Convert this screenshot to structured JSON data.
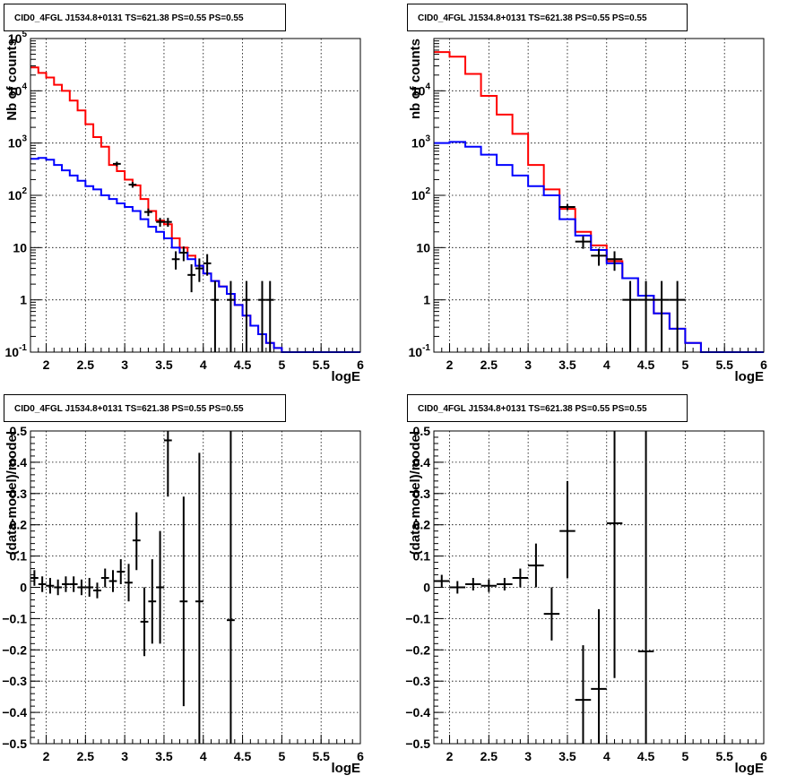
{
  "chart_data": [
    {
      "type": "line",
      "title": "CID0_4FGL J1534.8+0131 TS=621.38 PS=0.55 PS=0.55",
      "xlabel": "logE",
      "ylabel": "Nb of counts",
      "xlim": [
        1.8,
        6.0
      ],
      "ylim": [
        0.1,
        100000
      ],
      "yscale": "log",
      "grid": true,
      "xticks": [
        "2",
        "2.5",
        "3",
        "3.5",
        "4",
        "4.5",
        "5",
        "5.5",
        "6"
      ],
      "yticks": [
        "10",
        "1",
        "10"
      ],
      "yticks_log": [
        {
          "value": 0.1,
          "base": "10",
          "exp": "-1"
        },
        {
          "value": 1,
          "base": "1",
          "exp": ""
        },
        {
          "value": 10,
          "base": "10",
          "exp": ""
        },
        {
          "value": 100,
          "base": "10",
          "exp": "2"
        },
        {
          "value": 1000,
          "base": "10",
          "exp": "3"
        },
        {
          "value": 10000,
          "base": "10",
          "exp": "4"
        },
        {
          "value": 100000,
          "base": "10",
          "exp": "5"
        }
      ],
      "series": [
        {
          "color": "#ff0000",
          "style": "step",
          "edges": [
            1.8,
            1.9,
            2.0,
            2.1,
            2.2,
            2.3,
            2.4,
            2.5,
            2.6,
            2.7,
            2.8,
            2.9,
            3.0,
            3.1,
            3.2,
            3.3,
            3.4,
            3.5,
            3.6,
            3.7,
            3.8,
            3.9,
            4.0,
            4.1,
            4.2,
            4.3,
            4.4,
            4.5,
            4.6,
            4.7,
            4.8,
            4.9,
            5.0,
            5.1,
            5.2,
            5.3,
            5.4,
            5.5,
            5.6,
            5.7,
            5.8,
            5.9,
            6.0
          ],
          "values": [
            28000,
            22000,
            18000,
            13000,
            10000,
            6500,
            4200,
            2300,
            1300,
            850,
            380,
            290,
            200,
            155,
            85,
            50,
            33,
            28,
            15,
            10,
            7,
            4.5,
            3.2,
            2.3,
            1.8,
            1.3,
            0.8,
            0.5,
            0.32,
            0.22,
            0.15,
            0.12,
            0.1,
            0.1,
            0.1,
            0.1,
            0.1,
            0.1,
            0.1,
            0.1,
            0.1,
            0.1
          ]
        },
        {
          "color": "#0000ff",
          "style": "step",
          "edges": [
            1.8,
            1.9,
            2.0,
            2.1,
            2.2,
            2.3,
            2.4,
            2.5,
            2.6,
            2.7,
            2.8,
            2.9,
            3.0,
            3.1,
            3.2,
            3.3,
            3.4,
            3.5,
            3.6,
            3.7,
            3.8,
            3.9,
            4.0,
            4.1,
            4.2,
            4.3,
            4.4,
            4.5,
            4.6,
            4.7,
            4.8,
            4.9,
            5.0,
            5.1,
            5.2,
            5.3,
            5.4,
            5.5,
            5.6,
            5.7,
            5.8,
            5.9,
            6.0
          ],
          "values": [
            500,
            520,
            480,
            380,
            300,
            240,
            190,
            150,
            130,
            100,
            85,
            70,
            60,
            50,
            35,
            25,
            20,
            15,
            10,
            8,
            6,
            4.5,
            3.2,
            2.3,
            1.8,
            1.3,
            0.8,
            0.5,
            0.32,
            0.22,
            0.15,
            0.12,
            0.1,
            0.1,
            0.1,
            0.1,
            0.1,
            0.1,
            0.1,
            0.1,
            0.1,
            0.1
          ]
        }
      ],
      "points": [
        {
          "x": 2.9,
          "y": 400,
          "xerr": 0.05,
          "ylo": 360,
          "yhi": 440
        },
        {
          "x": 3.1,
          "y": 160,
          "xerr": 0.05,
          "ylo": 140,
          "yhi": 180
        },
        {
          "x": 3.3,
          "y": 48,
          "xerr": 0.05,
          "ylo": 40,
          "yhi": 56
        },
        {
          "x": 3.45,
          "y": 31,
          "xerr": 0.05,
          "ylo": 25,
          "yhi": 37
        },
        {
          "x": 3.55,
          "y": 31,
          "xerr": 0.05,
          "ylo": 25,
          "yhi": 37
        },
        {
          "x": 3.65,
          "y": 6,
          "xerr": 0.05,
          "ylo": 3.8,
          "yhi": 8.5
        },
        {
          "x": 3.75,
          "y": 8,
          "xerr": 0.05,
          "ylo": 5.5,
          "yhi": 10.5
        },
        {
          "x": 3.85,
          "y": 3,
          "xerr": 0.05,
          "ylo": 1.4,
          "yhi": 4.8
        },
        {
          "x": 3.95,
          "y": 4,
          "xerr": 0.05,
          "ylo": 2.2,
          "yhi": 6.2
        },
        {
          "x": 4.05,
          "y": 5,
          "xerr": 0.05,
          "ylo": 2.9,
          "yhi": 7.5
        },
        {
          "x": 4.15,
          "y": 1,
          "xerr": 0.05,
          "ylo": 0.1,
          "yhi": 2.3
        },
        {
          "x": 4.35,
          "y": 1,
          "xerr": 0.05,
          "ylo": 0.1,
          "yhi": 2.3
        },
        {
          "x": 4.55,
          "y": 1,
          "xerr": 0.05,
          "ylo": 0.1,
          "yhi": 2.3
        },
        {
          "x": 4.75,
          "y": 1,
          "xerr": 0.05,
          "ylo": 0.1,
          "yhi": 2.3
        },
        {
          "x": 4.85,
          "y": 1,
          "xerr": 0.05,
          "ylo": 0.1,
          "yhi": 2.3
        }
      ]
    },
    {
      "type": "line",
      "title": "CID0_4FGL J1534.8+0131 TS=621.38 PS=0.55 PS=0.55",
      "xlabel": "logE",
      "ylabel": "nb of counts",
      "xlim": [
        1.8,
        6.0
      ],
      "ylim": [
        0.1,
        100000
      ],
      "yscale": "log",
      "grid": true,
      "xticks": [
        "2",
        "2.5",
        "3",
        "3.5",
        "4",
        "4.5",
        "5",
        "5.5",
        "6"
      ],
      "yticks_log": [
        {
          "value": 0.1,
          "base": "10",
          "exp": "-1"
        },
        {
          "value": 1,
          "base": "1",
          "exp": ""
        },
        {
          "value": 10,
          "base": "10",
          "exp": ""
        },
        {
          "value": 100,
          "base": "10",
          "exp": "2"
        },
        {
          "value": 1000,
          "base": "10",
          "exp": "3"
        },
        {
          "value": 10000,
          "base": "10",
          "exp": "4"
        }
      ],
      "series": [
        {
          "color": "#ff0000",
          "style": "step",
          "edges": [
            1.8,
            2.0,
            2.2,
            2.4,
            2.6,
            2.8,
            3.0,
            3.2,
            3.4,
            3.6,
            3.8,
            4.0,
            4.2,
            4.4,
            4.6,
            4.8,
            5.0,
            5.2,
            5.4,
            5.6,
            5.8,
            6.0
          ],
          "values": [
            55000,
            45000,
            21000,
            8000,
            3500,
            1500,
            380,
            130,
            55,
            20,
            11,
            5.5,
            2.6,
            1.2,
            0.55,
            0.28,
            0.15,
            0.1,
            0.1,
            0.1,
            0.1
          ]
        },
        {
          "color": "#0000ff",
          "style": "step",
          "edges": [
            1.8,
            2.0,
            2.2,
            2.4,
            2.6,
            2.8,
            3.0,
            3.2,
            3.4,
            3.6,
            3.8,
            4.0,
            4.2,
            4.4,
            4.6,
            4.8,
            5.0,
            5.2,
            5.4,
            5.6,
            5.8,
            6.0
          ],
          "values": [
            1000,
            1050,
            850,
            600,
            380,
            240,
            150,
            100,
            35,
            17,
            9,
            5,
            2.6,
            1.2,
            0.55,
            0.28,
            0.15,
            0.1,
            0.1,
            0.1,
            0.1
          ]
        }
      ],
      "points": [
        {
          "x": 3.5,
          "y": 60,
          "xerr": 0.1,
          "ylo": 52,
          "yhi": 68
        },
        {
          "x": 3.7,
          "y": 13,
          "xerr": 0.1,
          "ylo": 9.5,
          "yhi": 16.5
        },
        {
          "x": 3.9,
          "y": 7,
          "xerr": 0.1,
          "ylo": 4.5,
          "yhi": 9.5
        },
        {
          "x": 4.1,
          "y": 6,
          "xerr": 0.1,
          "ylo": 3.6,
          "yhi": 8.5
        },
        {
          "x": 4.3,
          "y": 1,
          "xerr": 0.1,
          "ylo": 0.1,
          "yhi": 2.3
        },
        {
          "x": 4.5,
          "y": 1,
          "xerr": 0.1,
          "ylo": 0.1,
          "yhi": 2.3
        },
        {
          "x": 4.7,
          "y": 1,
          "xerr": 0.1,
          "ylo": 0.1,
          "yhi": 2.3
        },
        {
          "x": 4.9,
          "y": 1,
          "xerr": 0.1,
          "ylo": 0.1,
          "yhi": 2.3
        }
      ]
    },
    {
      "type": "scatter",
      "title": "CID0_4FGL J1534.8+0131 TS=621.38 PS=0.55 PS=0.55",
      "xlabel": "logE",
      "ylabel": "(data-model)/model",
      "xlim": [
        1.8,
        6.0
      ],
      "ylim": [
        -0.5,
        0.5
      ],
      "grid": true,
      "xticks": [
        "2",
        "2.5",
        "3",
        "3.5",
        "4",
        "4.5",
        "5",
        "5.5",
        "6"
      ],
      "yticks": [
        "−0.5",
        "−0.4",
        "−0.3",
        "−0.2",
        "−0.1",
        "0",
        "0.1",
        "0.2",
        "0.3",
        "0.4",
        "0.5"
      ],
      "points": [
        {
          "x": 1.85,
          "y": 0.03,
          "xerr": 0.05,
          "ylo": 0.005,
          "yhi": 0.055
        },
        {
          "x": 1.95,
          "y": 0.01,
          "xerr": 0.05,
          "ylo": -0.015,
          "yhi": 0.035
        },
        {
          "x": 2.05,
          "y": 0.005,
          "xerr": 0.05,
          "ylo": -0.02,
          "yhi": 0.03
        },
        {
          "x": 2.15,
          "y": 0.0,
          "xerr": 0.05,
          "ylo": -0.025,
          "yhi": 0.025
        },
        {
          "x": 2.25,
          "y": 0.01,
          "xerr": 0.05,
          "ylo": -0.015,
          "yhi": 0.035
        },
        {
          "x": 2.35,
          "y": 0.01,
          "xerr": 0.05,
          "ylo": -0.015,
          "yhi": 0.035
        },
        {
          "x": 2.45,
          "y": 0.0,
          "xerr": 0.05,
          "ylo": -0.025,
          "yhi": 0.025
        },
        {
          "x": 2.55,
          "y": 0.0,
          "xerr": 0.05,
          "ylo": -0.03,
          "yhi": 0.03
        },
        {
          "x": 2.65,
          "y": -0.01,
          "xerr": 0.05,
          "ylo": -0.035,
          "yhi": 0.015
        },
        {
          "x": 2.75,
          "y": 0.03,
          "xerr": 0.05,
          "ylo": 0.0,
          "yhi": 0.06
        },
        {
          "x": 2.85,
          "y": 0.02,
          "xerr": 0.05,
          "ylo": -0.015,
          "yhi": 0.055
        },
        {
          "x": 2.95,
          "y": 0.05,
          "xerr": 0.05,
          "ylo": 0.01,
          "yhi": 0.09
        },
        {
          "x": 3.05,
          "y": 0.015,
          "xerr": 0.05,
          "ylo": -0.045,
          "yhi": 0.075
        },
        {
          "x": 3.15,
          "y": 0.15,
          "xerr": 0.05,
          "ylo": 0.055,
          "yhi": 0.24
        },
        {
          "x": 3.25,
          "y": -0.11,
          "xerr": 0.05,
          "ylo": -0.22,
          "yhi": 0.0
        },
        {
          "x": 3.35,
          "y": -0.045,
          "xerr": 0.05,
          "ylo": -0.18,
          "yhi": 0.09
        },
        {
          "x": 3.45,
          "y": 0.0,
          "xerr": 0.05,
          "ylo": -0.18,
          "yhi": 0.18
        },
        {
          "x": 3.55,
          "y": 0.47,
          "xerr": 0.05,
          "ylo": 0.29,
          "yhi": 0.55
        },
        {
          "x": 3.75,
          "y": -0.045,
          "xerr": 0.05,
          "ylo": -0.38,
          "yhi": 0.29
        },
        {
          "x": 3.95,
          "y": -0.045,
          "xerr": 0.05,
          "ylo": -0.55,
          "yhi": 0.43
        },
        {
          "x": 4.35,
          "y": -0.105,
          "xerr": 0.05,
          "ylo": -0.55,
          "yhi": 0.55
        }
      ]
    },
    {
      "type": "scatter",
      "title": "CID0_4FGL J1534.8+0131 TS=621.38 PS=0.55 PS=0.55",
      "xlabel": "logE",
      "ylabel": "(data-model)/model",
      "xlim": [
        1.8,
        6.0
      ],
      "ylim": [
        -0.5,
        0.5
      ],
      "grid": true,
      "xticks": [
        "2",
        "2.5",
        "3",
        "3.5",
        "4",
        "4.5",
        "5",
        "5.5",
        "6"
      ],
      "yticks": [
        "−0.5",
        "−0.4",
        "−0.3",
        "−0.2",
        "−0.1",
        "0",
        "0.1",
        "0.2",
        "0.3",
        "0.4",
        "0.5"
      ],
      "points": [
        {
          "x": 1.9,
          "y": 0.02,
          "xerr": 0.1,
          "ylo": 0.0,
          "yhi": 0.04
        },
        {
          "x": 2.1,
          "y": 0.0,
          "xerr": 0.1,
          "ylo": -0.02,
          "yhi": 0.02
        },
        {
          "x": 2.3,
          "y": 0.01,
          "xerr": 0.1,
          "ylo": -0.01,
          "yhi": 0.03
        },
        {
          "x": 2.5,
          "y": 0.005,
          "xerr": 0.1,
          "ylo": -0.015,
          "yhi": 0.025
        },
        {
          "x": 2.7,
          "y": 0.01,
          "xerr": 0.1,
          "ylo": -0.01,
          "yhi": 0.03
        },
        {
          "x": 2.9,
          "y": 0.03,
          "xerr": 0.1,
          "ylo": 0.0,
          "yhi": 0.06
        },
        {
          "x": 3.1,
          "y": 0.07,
          "xerr": 0.1,
          "ylo": 0.0,
          "yhi": 0.14
        },
        {
          "x": 3.3,
          "y": -0.085,
          "xerr": 0.1,
          "ylo": -0.17,
          "yhi": -0.0
        },
        {
          "x": 3.5,
          "y": 0.18,
          "xerr": 0.1,
          "ylo": 0.03,
          "yhi": 0.34
        },
        {
          "x": 3.7,
          "y": -0.36,
          "xerr": 0.1,
          "ylo": -0.55,
          "yhi": -0.185
        },
        {
          "x": 3.9,
          "y": -0.325,
          "xerr": 0.1,
          "ylo": -0.55,
          "yhi": -0.07
        },
        {
          "x": 4.1,
          "y": 0.205,
          "xerr": 0.1,
          "ylo": -0.29,
          "yhi": 0.55
        },
        {
          "x": 4.5,
          "y": -0.205,
          "xerr": 0.1,
          "ylo": -0.55,
          "yhi": 0.55
        }
      ]
    }
  ]
}
